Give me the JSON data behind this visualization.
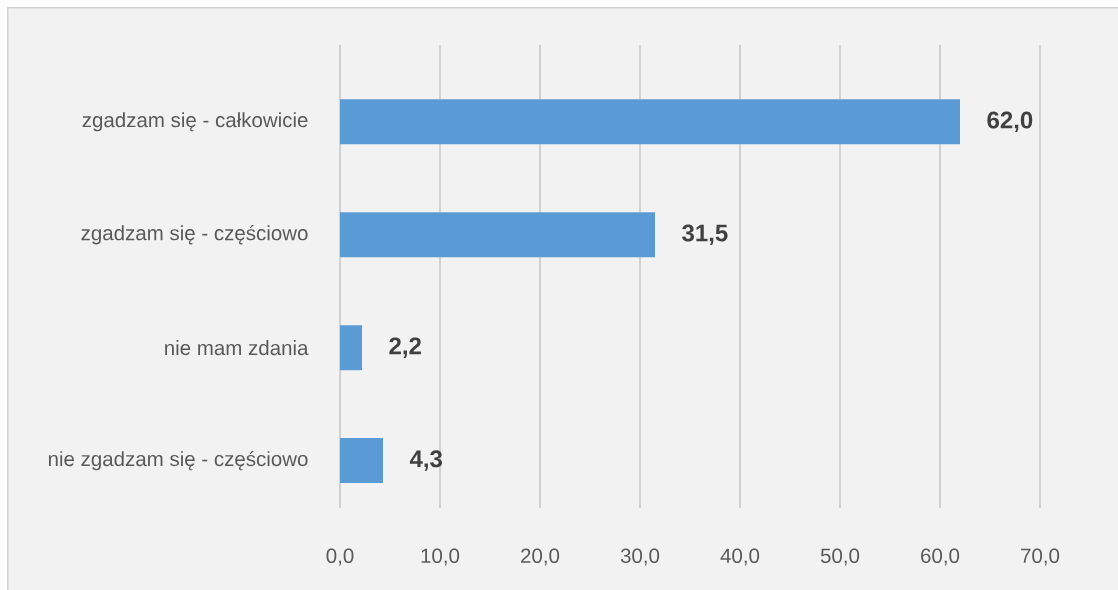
{
  "chart_data": {
    "type": "bar",
    "orientation": "horizontal",
    "categories": [
      "zgadzam się - całkowicie",
      "zgadzam się - częściowo",
      "nie mam zdania",
      "nie zgadzam się - częściowo"
    ],
    "values": [
      62.0,
      31.5,
      2.2,
      4.3
    ],
    "value_labels": [
      "62,0",
      "31,5",
      "2,2",
      "4,3"
    ],
    "color": "#5b9bd5",
    "xlim": [
      0,
      70
    ],
    "xticks": [
      {
        "value": 0,
        "label": "0,0"
      },
      {
        "value": 10,
        "label": "10,0"
      },
      {
        "value": 20,
        "label": "20,0"
      },
      {
        "value": 30,
        "label": "30,0"
      },
      {
        "value": 40,
        "label": "40,0"
      },
      {
        "value": 50,
        "label": "50,0"
      },
      {
        "value": 60,
        "label": "60,0"
      },
      {
        "value": 70,
        "label": "70,0"
      }
    ],
    "grid": "x"
  }
}
